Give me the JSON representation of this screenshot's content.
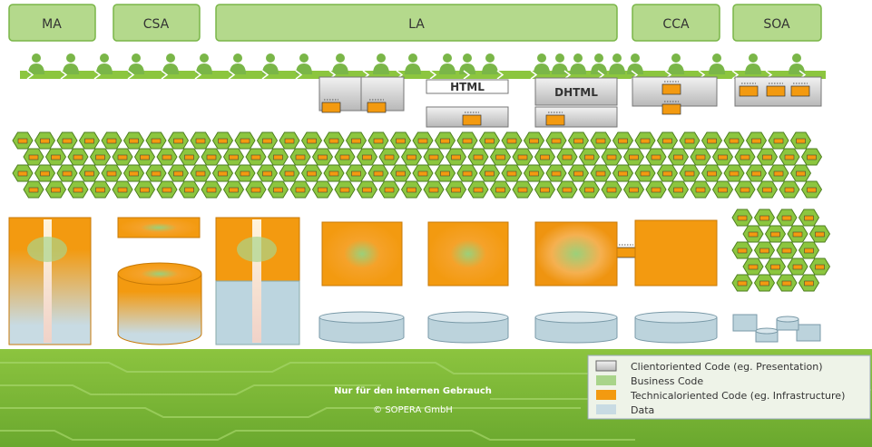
{
  "header": {
    "sections": [
      "MA",
      "CSA",
      "LA",
      "CCA",
      "SOA"
    ]
  },
  "labels": {
    "html": "HTML",
    "dhtml": "DHTML"
  },
  "footer": {
    "notice": "Nur für den internen Gebrauch",
    "copyright": "© SOPERA GmbH"
  },
  "legend": {
    "items": [
      "Clientoriented Code (eg. Presentation)",
      "Business Code",
      "Technicaloriented Code (eg. Infrastructure)",
      "Data"
    ]
  }
}
